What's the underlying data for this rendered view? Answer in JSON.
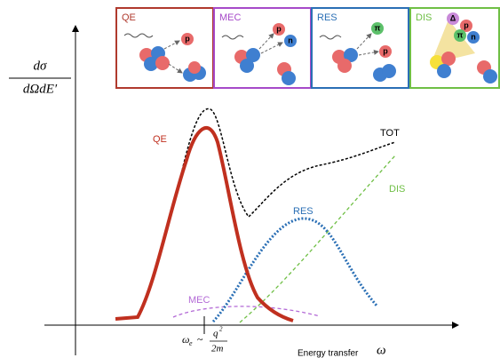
{
  "y_axis_label": {
    "numerator": "dσ",
    "denominator": "dΩdE′"
  },
  "panels": [
    {
      "label": "QE",
      "particles": [
        "p"
      ]
    },
    {
      "label": "MEC",
      "particles": [
        "p",
        "n"
      ]
    },
    {
      "label": "RES",
      "particles": [
        "π",
        "p"
      ]
    },
    {
      "label": "DIS",
      "particles": [
        "Δ",
        "p",
        "π",
        "n"
      ]
    }
  ],
  "curves": [
    {
      "label": "QE"
    },
    {
      "label": "TOT"
    },
    {
      "label": "RES"
    },
    {
      "label": "DIS"
    },
    {
      "label": "MEC"
    }
  ],
  "x_axis": {
    "peak_label": {
      "symbol": "ω",
      "subscript": "e",
      "relation": "~",
      "numerator": "q",
      "exponent": "2",
      "denominator": "2m"
    },
    "title": "Energy transfer",
    "symbol": "ω"
  }
}
